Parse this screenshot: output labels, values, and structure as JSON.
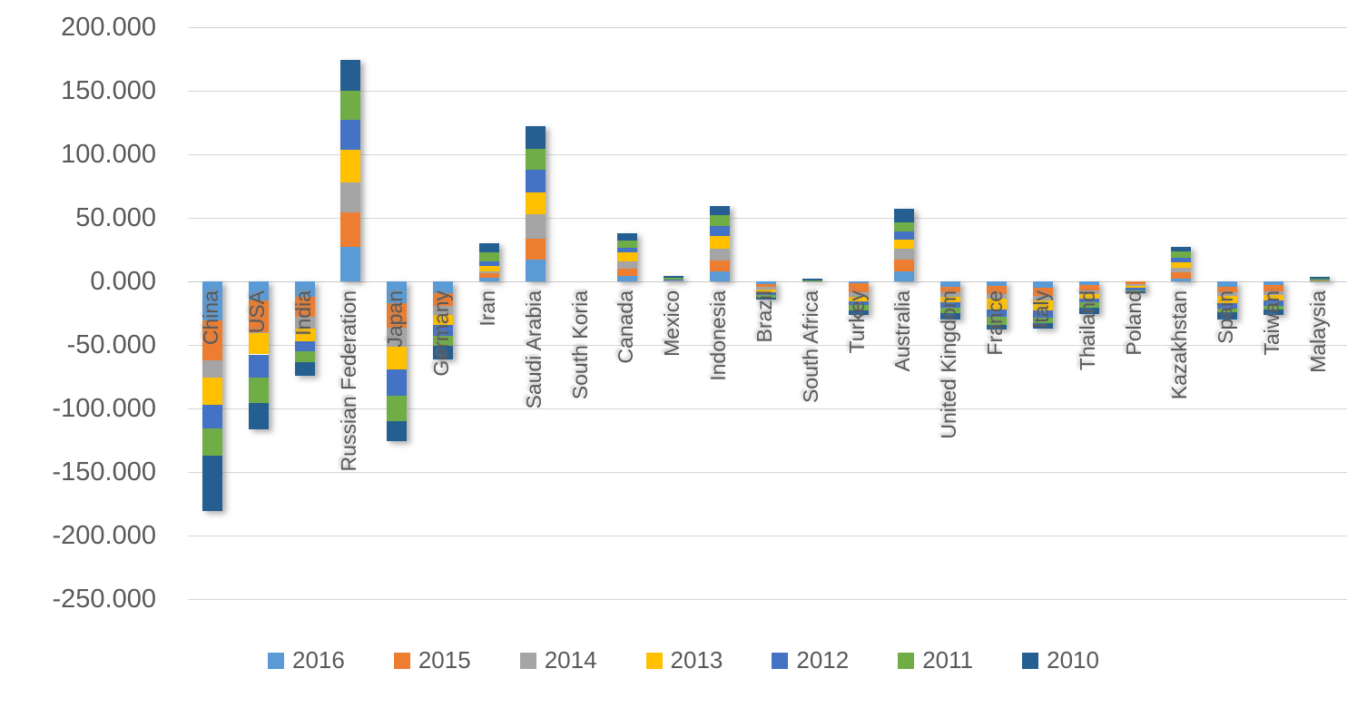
{
  "chart_data": {
    "type": "bar",
    "stacked": true,
    "orientation": "vertical",
    "title": "",
    "value_format_note": "y-axis shown with dot thousands separator, e.g. 50.000",
    "categories": [
      "China",
      "USA",
      "India",
      "Russian Federation",
      "Japan",
      "Germany",
      "Iran",
      "Saudi Arabia",
      "South Koria",
      "Canada",
      "Mexico",
      "Indonesia",
      "Brazil",
      "South Africa",
      "Turkey",
      "Australia",
      "United Kingdom",
      "France",
      "Italy",
      "Thailand",
      "Poland",
      "Kazakhstan",
      "Spain",
      "Taiwan",
      "Malaysia"
    ],
    "series": [
      {
        "name": "2016",
        "color": "#5B9BD5",
        "values": [
          -31,
          -15,
          -12.4,
          27.2,
          -17.1,
          -9,
          3,
          16.8,
          0,
          4.3,
          0.4,
          7.8,
          -2.2,
          0.1,
          -1.4,
          7.6,
          -4.3,
          -3.8,
          -4.7,
          -3.1,
          -0.3,
          2.4,
          -4,
          -2.8,
          0.2
        ]
      },
      {
        "name": "2015",
        "color": "#ED7D31",
        "values": [
          -31,
          -25,
          -15.5,
          27.2,
          -19,
          -10,
          3.5,
          17,
          0,
          5.7,
          0.3,
          8.3,
          -2.3,
          0.1,
          -7.3,
          9.5,
          -4.3,
          -6.4,
          -6.6,
          -4,
          -1.7,
          4.7,
          -4.7,
          -5.2,
          0.2
        ]
      },
      {
        "name": "2014",
        "color": "#A5A5A5",
        "values": [
          -14,
          -0.5,
          -9.5,
          23.2,
          -15.5,
          -7.1,
          1,
          18.9,
          0,
          5.4,
          0.2,
          9.5,
          -1.8,
          0.1,
          -3.5,
          8.3,
          -3.3,
          -3.5,
          -3.5,
          -3.1,
          -1.4,
          3.8,
          -2.4,
          -2.4,
          0.2
        ]
      },
      {
        "name": "2013",
        "color": "#FFC000",
        "values": [
          -21,
          -17,
          -9.5,
          26,
          -17.9,
          -8.3,
          4.5,
          17.3,
          0,
          7.1,
          0.3,
          9.9,
          -2.3,
          0.1,
          -3.5,
          7.1,
          -4.7,
          -8.3,
          -8,
          -3.1,
          -1.7,
          4,
          -5.9,
          -4.7,
          0.4
        ]
      },
      {
        "name": "2012",
        "color": "#4472C4",
        "values": [
          -19,
          -18,
          -8.3,
          23.4,
          -20.2,
          -8.3,
          3.5,
          18.2,
          0,
          4,
          0.4,
          7.8,
          -1.8,
          0.1,
          -3,
          7.1,
          -4.3,
          -6,
          -6,
          -3.3,
          -1.7,
          3.5,
          -4.3,
          -4.3,
          0.3
        ]
      },
      {
        "name": "2011",
        "color": "#70AD47",
        "values": [
          -21,
          -20,
          -8.3,
          23.2,
          -20.2,
          -8.3,
          7.1,
          16.1,
          0,
          5.4,
          1.2,
          8.7,
          -2.4,
          0.5,
          -4,
          7.1,
          -4.3,
          -6,
          -4,
          -4,
          -1.4,
          5.2,
          -3.3,
          -2.8,
          0.5
        ]
      },
      {
        "name": "2010",
        "color": "#255E91",
        "values": [
          -44,
          -21,
          -10.7,
          24.1,
          -15.7,
          -10.7,
          7.1,
          18.2,
          0,
          5.9,
          1.8,
          7.1,
          -1.2,
          1.5,
          -4,
          10.6,
          -4.7,
          -4,
          -4.5,
          -4.9,
          -1.2,
          3.8,
          -5.4,
          -4.3,
          2
        ]
      }
    ],
    "ylim": [
      -250,
      200
    ],
    "ytick_step": 50,
    "ytick_labels": [
      "200.000",
      "150.000",
      "100.000",
      "50.000",
      "0.000",
      "-50.000",
      "-100.000",
      "-150.000",
      "-200.000",
      "-250.000"
    ],
    "grid": true,
    "legend_position": "bottom",
    "legend_labels": [
      "2016",
      "2015",
      "2014",
      "2013",
      "2012",
      "2011",
      "2010"
    ]
  }
}
